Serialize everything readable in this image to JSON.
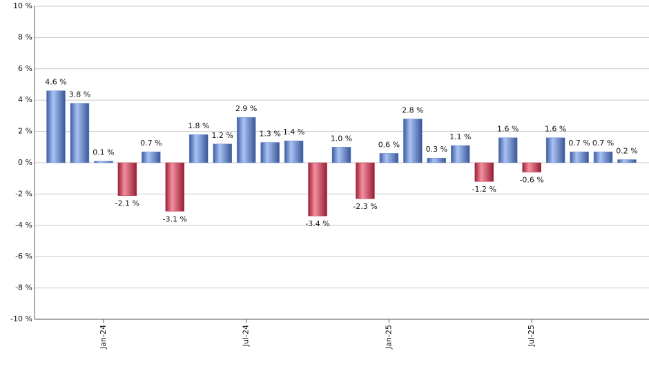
{
  "chart_data": {
    "type": "bar",
    "categories": [
      null,
      null,
      "Jan-24",
      null,
      null,
      null,
      null,
      null,
      "Jul-24",
      null,
      null,
      null,
      null,
      null,
      "Jan-25",
      null,
      null,
      null,
      null,
      null,
      "Jul-25",
      null,
      null,
      null,
      null
    ],
    "values": [
      4.6,
      3.8,
      0.1,
      -2.1,
      0.7,
      -3.1,
      1.8,
      1.2,
      2.9,
      1.3,
      1.4,
      -3.4,
      1.0,
      -2.3,
      0.6,
      2.8,
      0.3,
      1.1,
      -1.2,
      1.6,
      -0.6,
      1.6,
      0.7,
      0.7,
      0.2
    ],
    "value_labels": [
      "4.6 %",
      "3.8 %",
      "0.1 %",
      "-2.1 %",
      "0.7 %",
      "-3.1 %",
      "1.8 %",
      "1.2 %",
      "2.9 %",
      "1.3 %",
      "1.4 %",
      "-3.4 %",
      "1.0 %",
      "-2.3 %",
      "0.6 %",
      "2.8 %",
      "0.3 %",
      "1.1 %",
      "-1.2 %",
      "1.6 %",
      "-0.6 %",
      "1.6 %",
      "0.7 %",
      "0.7 %",
      "0.2 %"
    ],
    "positive_color": "#6f8fd6",
    "negative_color": "#c8324f",
    "ylim": [
      -10,
      10
    ],
    "yticks": [
      {
        "value": -10,
        "label": "-10 %"
      },
      {
        "value": -8,
        "label": "-8 %"
      },
      {
        "value": -6,
        "label": "-6 %"
      },
      {
        "value": -4,
        "label": "-4 %"
      },
      {
        "value": -2,
        "label": "-2 %"
      },
      {
        "value": 0,
        "label": "0 %"
      },
      {
        "value": 2,
        "label": "2 %"
      },
      {
        "value": 4,
        "label": "4 %"
      },
      {
        "value": 6,
        "label": "6 %"
      },
      {
        "value": 8,
        "label": "8 %"
      },
      {
        "value": 10,
        "label": "10 %"
      }
    ],
    "grid": true
  }
}
